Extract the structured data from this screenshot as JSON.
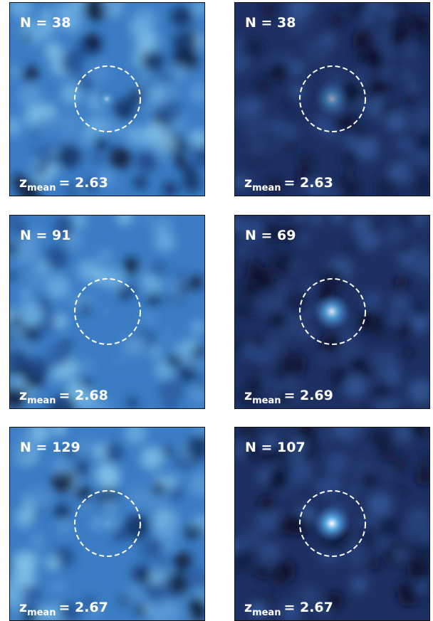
{
  "panels": [
    {
      "n": "N = 38",
      "z": {
        "symbol": "z",
        "subscript": "mean",
        "value": "= 2.63"
      }
    },
    {
      "n": "N = 38",
      "z": {
        "symbol": "z",
        "subscript": "mean",
        "value": "= 2.63"
      }
    },
    {
      "n": "N = 91",
      "z": {
        "symbol": "z",
        "subscript": "mean",
        "value": "= 2.68"
      }
    },
    {
      "n": "N = 69",
      "z": {
        "symbol": "z",
        "subscript": "mean",
        "value": "= 2.69"
      }
    },
    {
      "n": "N = 129",
      "z": {
        "symbol": "z",
        "subscript": "mean",
        "value": "= 2.67"
      }
    },
    {
      "n": "N = 107",
      "z": {
        "symbol": "z",
        "subscript": "mean",
        "value": "= 2.67"
      }
    }
  ]
}
